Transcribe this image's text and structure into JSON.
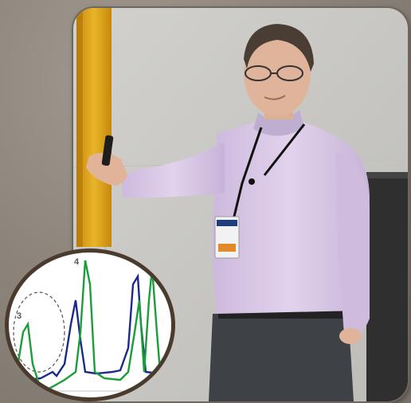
{
  "photo": {
    "subject": "presenter-with-clicker",
    "colors": {
      "wall": "#c9c8c4",
      "yellow_pillar": "#e0a71a",
      "shirt": "#d9c7e6",
      "pants": "#3e4146",
      "podium": "#2f2f2f"
    }
  },
  "inset_chart": {
    "peak_labels": [
      "3",
      "4"
    ],
    "colors": {
      "series_a": "#1a9e3a",
      "series_b": "#1c2a8c",
      "dashed": "#555555"
    }
  }
}
